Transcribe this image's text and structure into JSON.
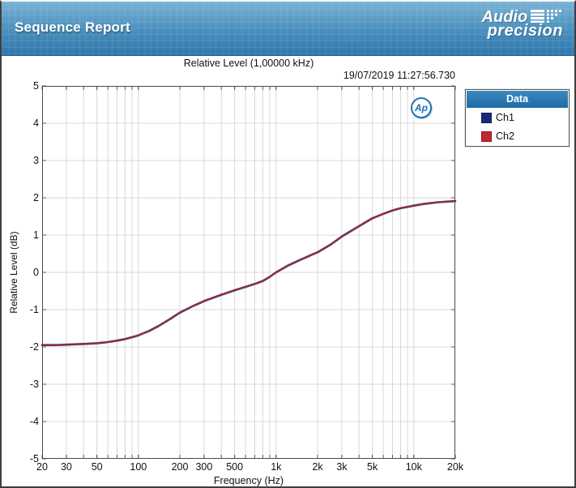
{
  "header": {
    "title": "Sequence Report",
    "brand_line1": "Audio",
    "brand_line2": "precision"
  },
  "report": {
    "timestamp": "19/07/2019 11:27:56.730",
    "watermark": "Ap"
  },
  "legend": {
    "title": "Data",
    "items": [
      {
        "label": "Ch1",
        "color": "#1b2a78"
      },
      {
        "label": "Ch2",
        "color": "#c1272d"
      }
    ]
  },
  "colors": {
    "banner_top": "#7ab2d4",
    "banner_bottom": "#2f78ac",
    "legend_header_blue": "#2a78b2",
    "ch1_blue": "#1b2a78",
    "ch2_red": "#c1272d"
  },
  "chart_data": {
    "type": "line",
    "title": "Relative Level (1,00000 kHz)",
    "xlabel": "Frequency (Hz)",
    "ylabel": "Relative Level (dB)",
    "x_scale": "log",
    "xlim": [
      20,
      20000
    ],
    "ylim": [
      -5,
      5
    ],
    "grid": true,
    "legend_position": "outside-right",
    "y_ticks": [
      5,
      4,
      3,
      2,
      1,
      0,
      -1,
      -2,
      -3,
      -4,
      -5
    ],
    "x_tick_labels": [
      {
        "f": 20,
        "label": "20"
      },
      {
        "f": 30,
        "label": "30"
      },
      {
        "f": 50,
        "label": "50"
      },
      {
        "f": 100,
        "label": "100"
      },
      {
        "f": 200,
        "label": "200"
      },
      {
        "f": 300,
        "label": "300"
      },
      {
        "f": 500,
        "label": "500"
      },
      {
        "f": 1000,
        "label": "1k"
      },
      {
        "f": 2000,
        "label": "2k"
      },
      {
        "f": 3000,
        "label": "3k"
      },
      {
        "f": 5000,
        "label": "5k"
      },
      {
        "f": 10000,
        "label": "10k"
      },
      {
        "f": 20000,
        "label": "20k"
      }
    ],
    "x_gridlines": [
      30,
      40,
      50,
      60,
      70,
      80,
      90,
      100,
      200,
      300,
      400,
      500,
      600,
      700,
      800,
      900,
      1000,
      2000,
      3000,
      4000,
      5000,
      6000,
      7000,
      8000,
      9000,
      10000
    ],
    "series": [
      {
        "name": "Ch1",
        "color": "#1b2a78",
        "points": [
          [
            20,
            -1.95
          ],
          [
            25,
            -1.95
          ],
          [
            30,
            -1.94
          ],
          [
            40,
            -1.92
          ],
          [
            50,
            -1.9
          ],
          [
            60,
            -1.87
          ],
          [
            70,
            -1.83
          ],
          [
            80,
            -1.79
          ],
          [
            90,
            -1.74
          ],
          [
            100,
            -1.69
          ],
          [
            120,
            -1.57
          ],
          [
            140,
            -1.44
          ],
          [
            170,
            -1.25
          ],
          [
            200,
            -1.08
          ],
          [
            250,
            -0.9
          ],
          [
            300,
            -0.77
          ],
          [
            400,
            -0.6
          ],
          [
            500,
            -0.48
          ],
          [
            600,
            -0.39
          ],
          [
            700,
            -0.31
          ],
          [
            800,
            -0.23
          ],
          [
            900,
            -0.12
          ],
          [
            1000,
            0.0
          ],
          [
            1200,
            0.17
          ],
          [
            1500,
            0.34
          ],
          [
            2000,
            0.54
          ],
          [
            2500,
            0.75
          ],
          [
            3000,
            0.96
          ],
          [
            4000,
            1.24
          ],
          [
            5000,
            1.45
          ],
          [
            6000,
            1.57
          ],
          [
            7000,
            1.66
          ],
          [
            8000,
            1.72
          ],
          [
            10000,
            1.79
          ],
          [
            12000,
            1.84
          ],
          [
            15000,
            1.88
          ],
          [
            20000,
            1.91
          ]
        ]
      },
      {
        "name": "Ch2",
        "color": "#c1272d",
        "points": [
          [
            20,
            -1.95
          ],
          [
            25,
            -1.95
          ],
          [
            30,
            -1.94
          ],
          [
            40,
            -1.92
          ],
          [
            50,
            -1.9
          ],
          [
            60,
            -1.87
          ],
          [
            70,
            -1.83
          ],
          [
            80,
            -1.79
          ],
          [
            90,
            -1.74
          ],
          [
            100,
            -1.69
          ],
          [
            120,
            -1.57
          ],
          [
            140,
            -1.44
          ],
          [
            170,
            -1.25
          ],
          [
            200,
            -1.08
          ],
          [
            250,
            -0.9
          ],
          [
            300,
            -0.77
          ],
          [
            400,
            -0.6
          ],
          [
            500,
            -0.48
          ],
          [
            600,
            -0.39
          ],
          [
            700,
            -0.31
          ],
          [
            800,
            -0.23
          ],
          [
            900,
            -0.12
          ],
          [
            1000,
            0.0
          ],
          [
            1200,
            0.17
          ],
          [
            1500,
            0.34
          ],
          [
            2000,
            0.54
          ],
          [
            2500,
            0.75
          ],
          [
            3000,
            0.96
          ],
          [
            4000,
            1.24
          ],
          [
            5000,
            1.45
          ],
          [
            6000,
            1.57
          ],
          [
            7000,
            1.66
          ],
          [
            8000,
            1.72
          ],
          [
            10000,
            1.79
          ],
          [
            12000,
            1.84
          ],
          [
            15000,
            1.88
          ],
          [
            20000,
            1.91
          ]
        ]
      }
    ]
  }
}
